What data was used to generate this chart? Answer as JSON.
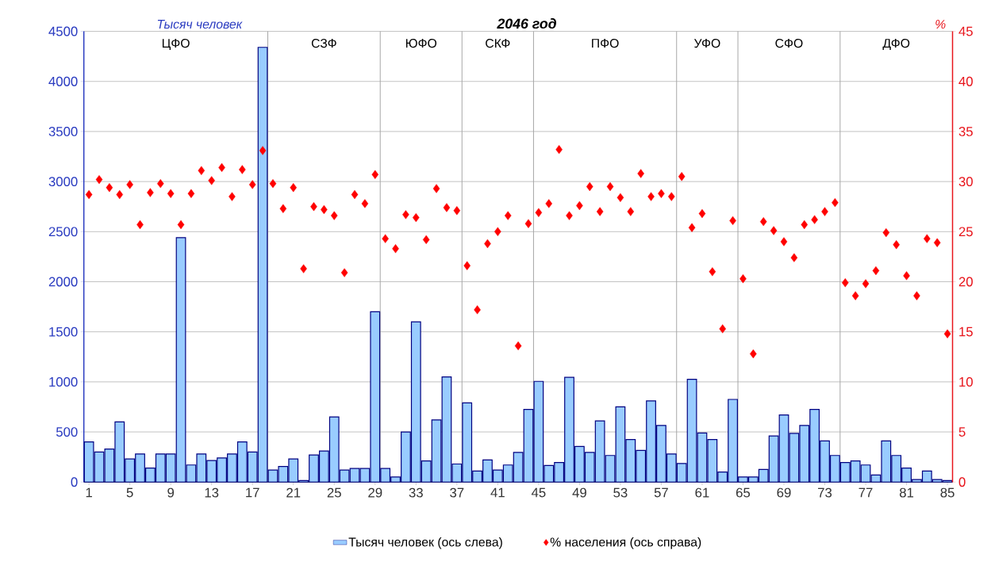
{
  "chart_data": {
    "type": "bar",
    "title": "2046 год",
    "ylabel": "Тысяч человек",
    "y2label": "%",
    "x": [
      1,
      2,
      3,
      4,
      5,
      6,
      7,
      8,
      9,
      10,
      11,
      12,
      13,
      14,
      15,
      16,
      17,
      18,
      19,
      20,
      21,
      22,
      23,
      24,
      25,
      26,
      27,
      28,
      29,
      30,
      31,
      32,
      33,
      34,
      35,
      36,
      37,
      38,
      39,
      40,
      41,
      42,
      43,
      44,
      45,
      46,
      47,
      48,
      49,
      50,
      51,
      52,
      53,
      54,
      55,
      56,
      57,
      58,
      59,
      60,
      61,
      62,
      63,
      64,
      65,
      66,
      67,
      68,
      69,
      70,
      71,
      72,
      73,
      74,
      75,
      76,
      77,
      78,
      79,
      80,
      81,
      82,
      83,
      84,
      85
    ],
    "xlim": [
      0.5,
      85.5
    ],
    "xticks": [
      1,
      5,
      9,
      13,
      17,
      21,
      25,
      29,
      33,
      37,
      41,
      45,
      49,
      53,
      57,
      61,
      65,
      69,
      73,
      77,
      81,
      85
    ],
    "ylim": [
      0,
      4500
    ],
    "yticks": [
      0,
      500,
      1000,
      1500,
      2000,
      2500,
      3000,
      3500,
      4000,
      4500
    ],
    "y2lim": [
      0,
      45
    ],
    "y2ticks": [
      0,
      5,
      10,
      15,
      20,
      25,
      30,
      35,
      40,
      45
    ],
    "grid": "y",
    "legend": "bottom",
    "ref_lines": [
      {
        "axis": "x",
        "value": 18.5
      },
      {
        "axis": "x",
        "value": 29.5
      },
      {
        "axis": "x",
        "value": 37.5
      },
      {
        "axis": "x",
        "value": 44.5
      },
      {
        "axis": "x",
        "value": 58.5
      },
      {
        "axis": "x",
        "value": 64.5
      },
      {
        "axis": "x",
        "value": 74.5
      }
    ],
    "annotations": [
      "ЦФО",
      "СЗФ",
      "ЮФО",
      "СКФ",
      "ПФО",
      "УФО",
      "СФО",
      "ДФО"
    ],
    "series": [
      {
        "name": "Тысяч человек (ось слева)",
        "color": "#99ccff",
        "values": [
          400,
          300,
          330,
          600,
          230,
          280,
          140,
          280,
          280,
          2440,
          170,
          280,
          215,
          240,
          280,
          400,
          300,
          4340,
          120,
          155,
          230,
          15,
          270,
          310,
          650,
          120,
          135,
          135,
          1700,
          135,
          50,
          500,
          1600,
          210,
          620,
          1050,
          180,
          790,
          110,
          220,
          120,
          170,
          295,
          725,
          1005,
          165,
          195,
          1045,
          355,
          295,
          610,
          265,
          750,
          425,
          315,
          810,
          565,
          280,
          185,
          1025,
          490,
          425,
          100,
          825,
          50,
          50,
          125,
          460,
          670,
          485,
          565,
          725,
          410,
          265,
          195,
          210,
          170,
          70,
          410,
          265,
          140,
          25,
          110,
          25,
          15
        ]
      },
      {
        "name": "% населения (ось справа)",
        "type": "scatter",
        "color": "#ff0000",
        "marker": "diamond",
        "axis": "y2",
        "values": [
          28.7,
          30.2,
          29.4,
          28.7,
          29.7,
          25.7,
          28.9,
          29.8,
          28.8,
          25.7,
          28.8,
          31.1,
          30.1,
          31.4,
          28.5,
          31.2,
          29.7,
          33.1,
          29.8,
          27.3,
          29.4,
          21.3,
          27.5,
          27.2,
          26.6,
          20.9,
          28.7,
          27.8,
          30.7,
          24.3,
          23.3,
          26.7,
          26.4,
          24.2,
          29.3,
          27.4,
          27.1,
          21.6,
          17.2,
          23.8,
          25.0,
          26.6,
          13.6,
          25.8,
          26.9,
          27.8,
          33.2,
          26.6,
          27.6,
          29.5,
          27.0,
          29.5,
          28.4,
          27.0,
          30.8,
          28.5,
          28.8,
          28.5,
          30.5,
          25.4,
          26.8,
          21.0,
          15.3,
          26.1,
          20.3,
          12.8,
          26.0,
          25.1,
          24.0,
          22.4,
          25.7,
          26.2,
          27.0,
          27.9,
          19.9,
          18.6,
          19.8,
          21.1,
          24.9,
          23.7,
          20.6,
          18.6,
          24.3,
          23.9,
          14.8
        ]
      }
    ]
  }
}
